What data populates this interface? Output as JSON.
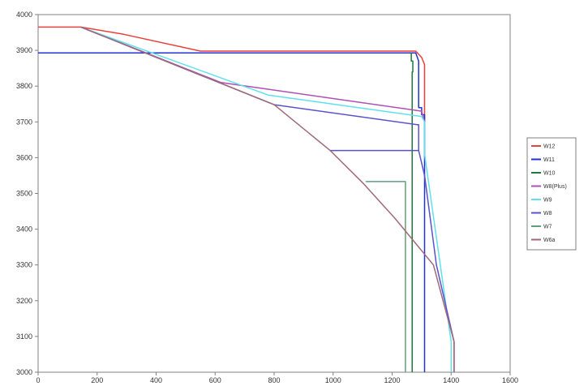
{
  "chart_data": {
    "type": "line",
    "title": "",
    "xlabel": "",
    "ylabel": "",
    "xlim": [
      0,
      1600
    ],
    "ylim": [
      3000,
      4000
    ],
    "x_ticks": [
      0,
      200,
      400,
      600,
      800,
      1000,
      1200,
      1400,
      1600
    ],
    "y_ticks": [
      3000,
      3100,
      3200,
      3300,
      3400,
      3500,
      3600,
      3700,
      3800,
      3900,
      4000
    ],
    "grid": "none",
    "legend_position": "right",
    "series": [
      {
        "name": "W12",
        "color": "#e8403c",
        "points": [
          [
            0,
            3965
          ],
          [
            145,
            3965
          ],
          [
            290,
            3945
          ],
          [
            550,
            3898
          ],
          [
            1280,
            3898
          ],
          [
            1300,
            3880
          ],
          [
            1310,
            3860
          ],
          [
            1310,
            3700
          ]
        ]
      },
      {
        "name": "W11",
        "color": "#2233cc",
        "points": [
          [
            0,
            3893
          ],
          [
            1280,
            3893
          ],
          [
            1290,
            3870
          ],
          [
            1290,
            3740
          ],
          [
            1300,
            3740
          ],
          [
            1300,
            3720
          ],
          [
            1310,
            3720
          ],
          [
            1310,
            3000
          ]
        ]
      },
      {
        "name": "W10",
        "color": "#1d7a3a",
        "points": [
          [
            1265,
            3893
          ],
          [
            1265,
            3870
          ],
          [
            1270,
            3870
          ],
          [
            1270,
            3840
          ],
          [
            1268,
            3840
          ],
          [
            1268,
            3000
          ]
        ]
      },
      {
        "name": "W8(Plus)",
        "color": "#b04fb4",
        "points": [
          [
            145,
            3965
          ],
          [
            620,
            3810
          ],
          [
            1300,
            3730
          ],
          [
            1310,
            3700
          ]
        ]
      },
      {
        "name": "W9",
        "color": "#5fe0ee",
        "points": [
          [
            145,
            3965
          ],
          [
            780,
            3775
          ],
          [
            1300,
            3715
          ],
          [
            1310,
            3700
          ],
          [
            1310,
            3610
          ],
          [
            1400,
            3085
          ],
          [
            1400,
            3000
          ]
        ]
      },
      {
        "name": "W8",
        "color": "#5a52cc",
        "points": [
          [
            145,
            3965
          ],
          [
            800,
            3748
          ],
          [
            1285,
            3692
          ],
          [
            1290,
            3692
          ],
          [
            1290,
            3620
          ],
          [
            990,
            3620
          ],
          [
            990,
            3620
          ],
          [
            1290,
            3620
          ],
          [
            1310,
            3550
          ],
          [
            1350,
            3300
          ],
          [
            1410,
            3085
          ],
          [
            1410,
            3000
          ]
        ]
      },
      {
        "name": "W7",
        "color": "#5fa07c",
        "points": [
          [
            1110,
            3533
          ],
          [
            1245,
            3533
          ],
          [
            1245,
            3000
          ]
        ]
      },
      {
        "name": "W6a",
        "color": "#a06a78",
        "points": [
          [
            145,
            3965
          ],
          [
            800,
            3748
          ],
          [
            990,
            3620
          ],
          [
            1100,
            3530
          ],
          [
            1210,
            3430
          ],
          [
            1340,
            3300
          ],
          [
            1410,
            3085
          ],
          [
            1410,
            3000
          ]
        ]
      }
    ]
  }
}
